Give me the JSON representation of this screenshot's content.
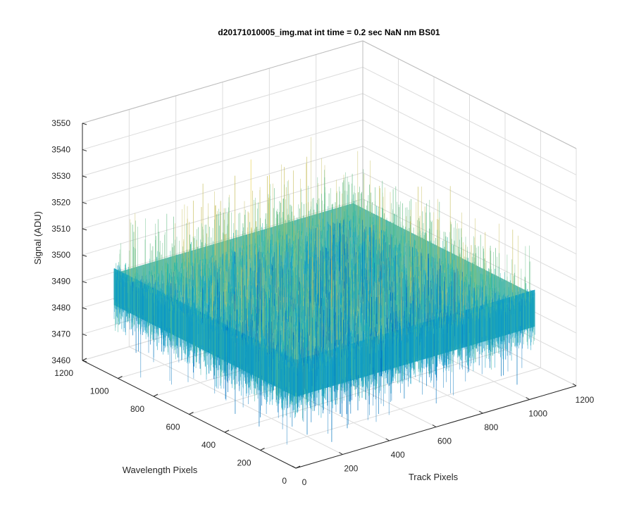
{
  "chart_data": {
    "type": "surface",
    "title": "d20171010005_img.mat int time = 0.2 sec  NaN nm BS01",
    "xlabel": "Track Pixels",
    "ylabel": "Wavelength Pixels",
    "zlabel": "Signal (ADU)",
    "xlim": [
      0,
      1200
    ],
    "ylim": [
      0,
      1200
    ],
    "zlim": [
      3460,
      3550
    ],
    "x_ticks": [
      "0",
      "200",
      "400",
      "600",
      "800",
      "1000",
      "1200"
    ],
    "y_ticks": [
      "0",
      "200",
      "400",
      "600",
      "800",
      "1000",
      "1200"
    ],
    "z_ticks": [
      "3460",
      "3470",
      "3480",
      "3490",
      "3500",
      "3510",
      "3520",
      "3530",
      "3540",
      "3550"
    ],
    "data_extent": {
      "x": [
        1,
        1024
      ],
      "y": [
        1,
        1024
      ]
    },
    "signal_mean": 3495,
    "signal_noise_range": [
      3465,
      3545
    ],
    "grid": true,
    "colormap": [
      "#0072bd",
      "#11a3c8",
      "#2ab8a8",
      "#6cc08a",
      "#c8c060",
      "#e8d040"
    ]
  }
}
